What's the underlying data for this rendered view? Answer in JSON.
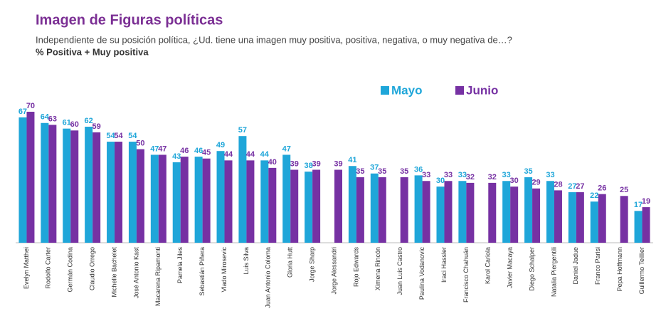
{
  "chart_data": {
    "type": "bar",
    "title": "Imagen de Figuras políticas",
    "subtitle": "Independiente de su posición política, ¿Ud. tiene una imagen muy positiva, positiva, negativa, o muy negativa de…?",
    "y_label": "% Positiva + Muy positiva",
    "legend": "top-right",
    "categories": [
      "Evelyn Matthei",
      "Rodolfo Carter",
      "Germán Codina",
      "Claudio Orrego",
      "Michelle Bachelet",
      "José Antonio Kast",
      "Macarena Ripamonti",
      "Pamela Jiles",
      "Sebastián Piñera",
      "Vlado Mirosevic",
      "Luis Silva",
      "Juan Antonio Coloma",
      "Gloria Hutt",
      "Jorge Sharp",
      "Jorge Alessandri",
      "Rojo Edwards",
      "Ximena Rincón",
      "Juan Luis Castro",
      "Paulina Vodanovic",
      "Iraci Hassler",
      "Francisco Chahuán",
      "Karol Cariola",
      "Javier Macaya",
      "Diego Schalper",
      "Natalia Piergentili",
      "Daniel Jadue",
      "Franco Parisi",
      "Pepa Hoffmann",
      "Guillermo Teillier"
    ],
    "series": [
      {
        "name": "Mayo",
        "color": "#1fa6d9",
        "values": [
          67,
          64,
          61,
          62,
          54,
          54,
          47,
          43,
          46,
          49,
          57,
          44,
          47,
          38,
          null,
          41,
          37,
          null,
          36,
          30,
          33,
          null,
          33,
          35,
          33,
          27,
          22,
          null,
          17
        ]
      },
      {
        "name": "Junio",
        "color": "#7631a3",
        "values": [
          70,
          63,
          60,
          59,
          54,
          50,
          47,
          46,
          45,
          44,
          44,
          40,
          39,
          39,
          39,
          35,
          35,
          35,
          33,
          33,
          32,
          32,
          30,
          29,
          28,
          27,
          26,
          25,
          19
        ]
      }
    ]
  }
}
